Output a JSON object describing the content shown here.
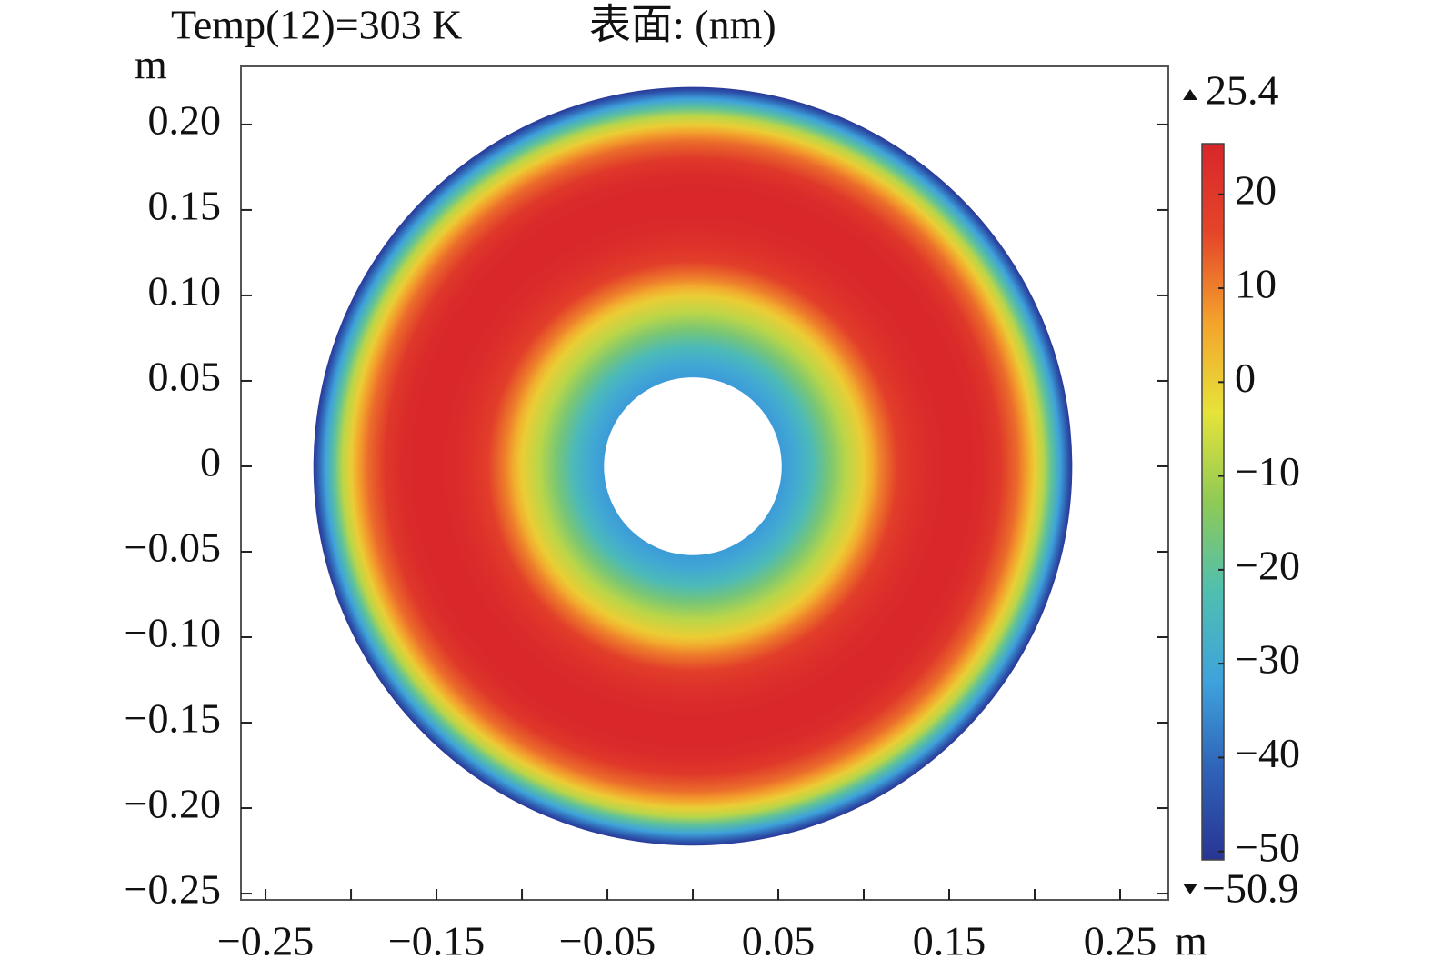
{
  "chart_data": {
    "type": "surface",
    "title": "Temp(12)=303 K",
    "subtitle": "表面: (nm)",
    "x_label": "m",
    "y_label": "m",
    "xlim": [
      -0.2644,
      0.2782
    ],
    "ylim": [
      -0.2537,
      0.234
    ],
    "xticks": [
      {
        "value": -0.25,
        "label": "−0.25"
      },
      {
        "value": -0.15,
        "label": "−0.15"
      },
      {
        "value": -0.05,
        "label": "−0.05"
      },
      0.05,
      0.15,
      0.25
    ],
    "xminorticks": [
      -0.2,
      -0.1,
      0,
      0.1,
      0.2
    ],
    "yticks": [
      {
        "value": 0.2,
        "label": "0.20"
      },
      0.15,
      {
        "value": 0.1,
        "label": "0.10"
      },
      0.05,
      0,
      {
        "value": -0.05,
        "label": "−0.05"
      },
      {
        "value": -0.1,
        "label": "−0.10"
      },
      {
        "value": -0.15,
        "label": "−0.15"
      },
      {
        "value": -0.2,
        "label": "−0.20"
      },
      {
        "value": -0.25,
        "label": "−0.25"
      }
    ],
    "radius": [
      0.052,
      0.06,
      0.07,
      0.08,
      0.09,
      0.1,
      0.105,
      0.11,
      0.12,
      0.13,
      0.14,
      0.15,
      0.16,
      0.17,
      0.18,
      0.19,
      0.195,
      0.2,
      0.205,
      0.21,
      0.215,
      0.22,
      0.222
    ],
    "values": [
      -33,
      -30,
      -24,
      -16,
      -8,
      0,
      5,
      10,
      18,
      22,
      24,
      25,
      25,
      24,
      20,
      12,
      7,
      0,
      -8,
      -20,
      -32,
      -45,
      -50
    ],
    "clim": [
      -50.9,
      25.4
    ],
    "clim_labels": [
      "−50.9",
      "25.4"
    ],
    "cticks": [
      20,
      10,
      0,
      {
        "value": -10,
        "label": "−10"
      },
      {
        "value": -20,
        "label": "−20"
      },
      {
        "value": -30,
        "label": "−30"
      },
      {
        "value": -40,
        "label": "−40"
      },
      {
        "value": -50,
        "label": "−50"
      }
    ],
    "colormap": [
      "#283593",
      "#2f62b8",
      "#3ea3dc",
      "#4fbfb0",
      "#8fca55",
      "#e6e33a",
      "#f4a32c",
      "#e5452a",
      "#d8262a"
    ]
  }
}
